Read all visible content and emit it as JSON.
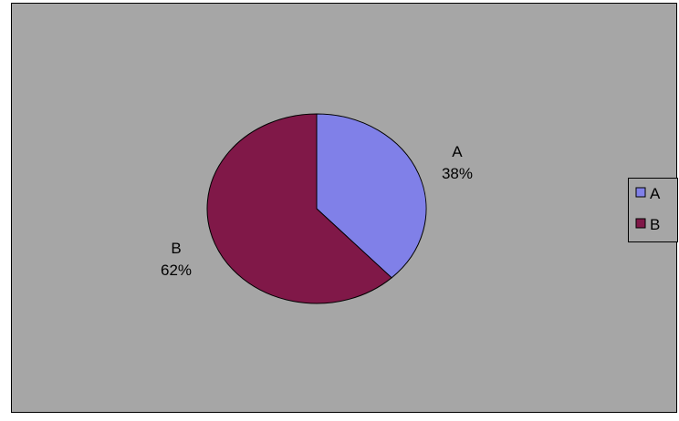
{
  "chart_data": {
    "type": "pie",
    "title": "",
    "slices": [
      {
        "label": "A",
        "value": 38,
        "display": "38%",
        "color": "#8080e8"
      },
      {
        "label": "B",
        "value": 62,
        "display": "62%",
        "color": "#801848"
      }
    ],
    "legend": {
      "position": "right",
      "entries": [
        "A",
        "B"
      ]
    },
    "plot_background": "#a6a6a6",
    "border_color": "#000000"
  }
}
